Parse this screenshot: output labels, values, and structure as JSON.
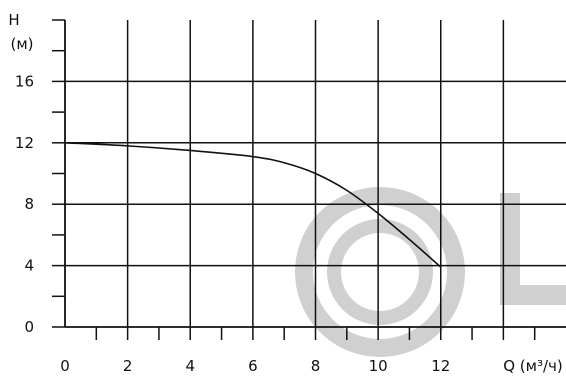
{
  "chart_data": {
    "type": "line",
    "title": "",
    "ylabel_line1": "H",
    "ylabel_line2": "(м)",
    "xlabel": "Q (м³/ч)",
    "xlim": [
      0,
      16
    ],
    "ylim": [
      0,
      20
    ],
    "x_tick_labels": [
      "0",
      "2",
      "4",
      "6",
      "8",
      "10",
      "12"
    ],
    "y_tick_labels": [
      "0",
      "4",
      "8",
      "12",
      "16"
    ],
    "grid": true,
    "series": [
      {
        "x": [
          0,
          2,
          4,
          6,
          7,
          8,
          9,
          10,
          11,
          12
        ],
        "y": [
          12,
          11.8,
          11.5,
          11.1,
          10.7,
          10.0,
          8.9,
          7.4,
          5.7,
          3.9
        ]
      }
    ],
    "watermark": {
      "text": "OL",
      "color": "#cfcfcf"
    }
  }
}
